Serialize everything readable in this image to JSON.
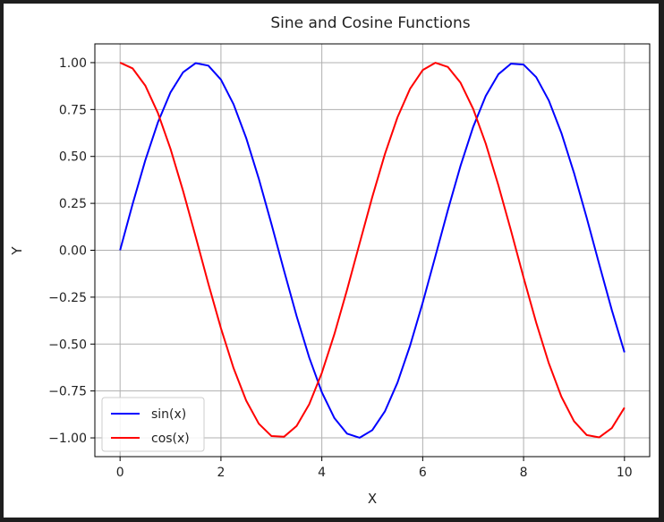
{
  "chart_data": {
    "type": "line",
    "title": "Sine and Cosine Functions",
    "xlabel": "X",
    "ylabel": "Y",
    "xlim": [
      -0.5,
      10.5
    ],
    "ylim": [
      -1.1,
      1.1
    ],
    "xticks": [
      0,
      2,
      4,
      6,
      8,
      10
    ],
    "xtick_labels": [
      "0",
      "2",
      "4",
      "6",
      "8",
      "10"
    ],
    "yticks": [
      1.0,
      0.75,
      0.5,
      0.25,
      0.0,
      -0.25,
      -0.5,
      -0.75,
      -1.0
    ],
    "ytick_labels": [
      "1.00",
      "0.75",
      "0.50",
      "0.25",
      "0.00",
      "−0.25",
      "−0.50",
      "−0.75",
      "−1.00"
    ],
    "grid": true,
    "legend_position": "lower-left",
    "x": [
      0,
      0.25,
      0.5,
      0.75,
      1,
      1.25,
      1.5,
      1.75,
      2,
      2.25,
      2.5,
      2.75,
      3,
      3.25,
      3.5,
      3.75,
      4,
      4.25,
      4.5,
      4.75,
      5,
      5.25,
      5.5,
      5.75,
      6,
      6.25,
      6.5,
      6.75,
      7,
      7.25,
      7.5,
      7.75,
      8,
      8.25,
      8.5,
      8.75,
      9,
      9.25,
      9.5,
      9.75,
      10
    ],
    "series": [
      {
        "name": "sin(x)",
        "color": "#0000ff",
        "values": [
          0,
          0.2474,
          0.4794,
          0.6816,
          0.8415,
          0.949,
          0.9975,
          0.984,
          0.9093,
          0.7781,
          0.5985,
          0.3817,
          0.1411,
          -0.1082,
          -0.3508,
          -0.5716,
          -0.7568,
          -0.895,
          -0.9775,
          -0.9993,
          -0.9589,
          -0.8589,
          -0.7055,
          -0.5083,
          -0.2794,
          -0.0332,
          0.2151,
          0.45,
          0.657,
          0.8228,
          0.938,
          0.9945,
          0.9894,
          0.9226,
          0.7985,
          0.6247,
          0.4121,
          0.1743,
          -0.0752,
          -0.3195,
          -0.544
        ]
      },
      {
        "name": "cos(x)",
        "color": "#ff0000",
        "values": [
          1,
          0.9689,
          0.8776,
          0.7317,
          0.5403,
          0.3153,
          0.0707,
          -0.1782,
          -0.4161,
          -0.6282,
          -0.8011,
          -0.9243,
          -0.99,
          -0.9941,
          -0.9365,
          -0.8206,
          -0.6536,
          -0.4461,
          -0.2108,
          0.0376,
          0.2837,
          0.5121,
          0.7087,
          0.8612,
          0.9602,
          0.9994,
          0.9766,
          0.893,
          0.7539,
          0.5683,
          0.3466,
          0.105,
          -0.1455,
          -0.3857,
          -0.602,
          -0.7809,
          -0.9111,
          -0.9847,
          -0.9972,
          -0.9475,
          -0.8391
        ]
      }
    ]
  }
}
